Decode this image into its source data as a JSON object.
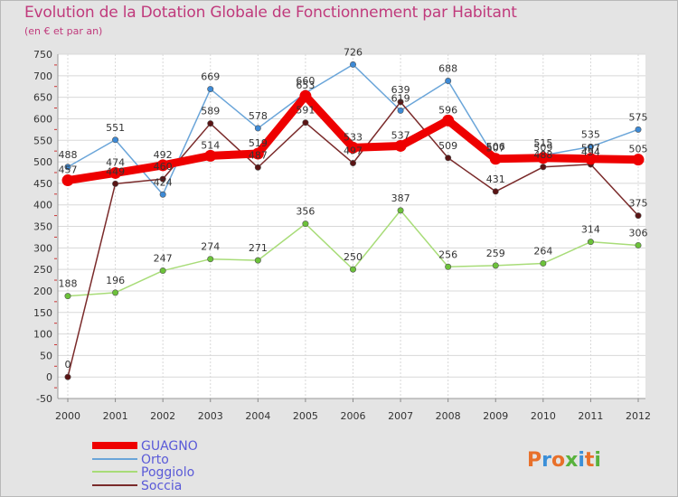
{
  "header": {
    "title": "Evolution de la Dotation Globale de Fonctionnement par Habitant",
    "subtitle": "(en € et par an)"
  },
  "brand": {
    "letters": [
      "P",
      "r",
      "o",
      "x",
      "i",
      "t",
      "i"
    ],
    "colors": [
      "#e8702a",
      "#3b8fd8",
      "#e8702a",
      "#58b23c",
      "#3b8fd8",
      "#e8702a",
      "#58b23c"
    ]
  },
  "chart_data": {
    "type": "line",
    "title": "Evolution de la Dotation Globale de Fonctionnement par Habitant",
    "subtitle": "(en € et par an)",
    "xlabel": "",
    "ylabel": "",
    "ylim": [
      -50,
      750
    ],
    "yticks": [
      -50,
      0,
      50,
      100,
      150,
      200,
      250,
      300,
      350,
      400,
      450,
      500,
      550,
      600,
      650,
      700,
      750
    ],
    "categories": [
      "2000",
      "2001",
      "2002",
      "2003",
      "2004",
      "2005",
      "2006",
      "2007",
      "2008",
      "2009",
      "2010",
      "2011",
      "2012"
    ],
    "legend_position": "bottom-left",
    "series": [
      {
        "name": "GUAGNO",
        "color": "#ee0000",
        "width": "thick",
        "marker": "#ee0000",
        "values": [
          457,
          474,
          492,
          514,
          519,
          653,
          533,
          537,
          596,
          507,
          509,
          507,
          505
        ],
        "labels": [
          "457",
          "474",
          "492",
          "514",
          "519",
          "653",
          "533",
          "537",
          "596",
          "507",
          "509",
          "507",
          "505"
        ]
      },
      {
        "name": "Orto",
        "color": "#6aa5d9",
        "width": "thin",
        "marker": "#3d8ad6",
        "values": [
          488,
          551,
          424,
          669,
          578,
          660,
          726,
          619,
          688,
          506,
          515,
          535,
          575
        ],
        "labels": [
          "488",
          "551",
          "424",
          "669",
          "578",
          "660",
          "726",
          "619",
          "688",
          "506",
          "515",
          "535",
          "575"
        ]
      },
      {
        "name": "Poggiolo",
        "color": "#a8dc78",
        "width": "thin",
        "marker": "#6cc23a",
        "values": [
          188,
          196,
          247,
          274,
          271,
          356,
          250,
          387,
          256,
          259,
          264,
          314,
          306
        ],
        "labels": [
          "188",
          "196",
          "247",
          "274",
          "271",
          "356",
          "250",
          "387",
          "256",
          "259",
          "264",
          "314",
          "306"
        ]
      },
      {
        "name": "Soccia",
        "color": "#7a2a2a",
        "width": "thin",
        "marker": "#5a1414",
        "values": [
          0,
          449,
          460,
          589,
          487,
          591,
          497,
          639,
          509,
          431,
          488,
          494,
          375
        ],
        "labels": [
          "0",
          "449",
          "460",
          "589",
          "487",
          "591",
          "497",
          "639",
          "509",
          "431",
          "488",
          "494",
          "375"
        ]
      }
    ]
  }
}
